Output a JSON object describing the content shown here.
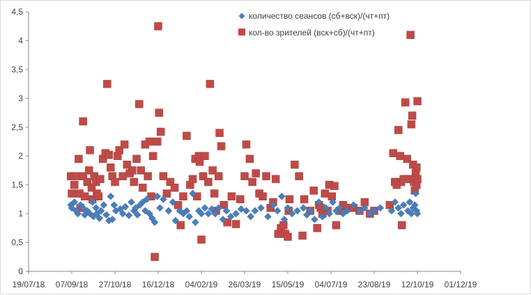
{
  "chart_data": {
    "type": "scatter",
    "title": "",
    "xlabel": "",
    "ylabel": "",
    "x_ticks": [
      "19/07/18",
      "07/09/18",
      "27/10/18",
      "16/12/18",
      "04/02/19",
      "26/03/19",
      "15/05/19",
      "04/07/19",
      "23/08/19",
      "12/10/19",
      "01/12/19"
    ],
    "y_ticks": [
      "0",
      "0,5",
      "1",
      "1,5",
      "2",
      "2,5",
      "3",
      "3,5",
      "4",
      "4,5"
    ],
    "xlim": [
      "2018-07-19",
      "2019-12-01"
    ],
    "ylim": [
      0,
      4.5
    ],
    "grid": "none",
    "legend_position": "top-right",
    "series": [
      {
        "name": "количество сеансов (сб+вск)/(чт+пт)",
        "color": "#4a7ebb",
        "marker": "diamond",
        "points": [
          [
            "2018-09-06",
            1.15
          ],
          [
            "2018-09-07",
            1.1
          ],
          [
            "2018-09-10",
            1.2
          ],
          [
            "2018-09-12",
            1.05
          ],
          [
            "2018-09-14",
            1.0
          ],
          [
            "2018-09-17",
            1.15
          ],
          [
            "2018-09-20",
            1.1
          ],
          [
            "2018-09-22",
            0.98
          ],
          [
            "2018-09-25",
            1.05
          ],
          [
            "2018-09-28",
            1.0
          ],
          [
            "2018-10-01",
            1.2
          ],
          [
            "2018-10-02",
            0.95
          ],
          [
            "2018-10-05",
            1.1
          ],
          [
            "2018-10-06",
            1.0
          ],
          [
            "2018-10-09",
            0.92
          ],
          [
            "2018-10-11",
            1.05
          ],
          [
            "2018-10-14",
            1.15
          ],
          [
            "2018-10-17",
            0.98
          ],
          [
            "2018-10-20",
            0.88
          ],
          [
            "2018-10-22",
            1.3
          ],
          [
            "2018-10-24",
            0.9
          ],
          [
            "2018-10-26",
            1.15
          ],
          [
            "2018-10-28",
            1.05
          ],
          [
            "2018-11-02",
            1.08
          ],
          [
            "2018-11-05",
            1.0
          ],
          [
            "2018-11-08",
            1.12
          ],
          [
            "2018-11-12",
            0.97
          ],
          [
            "2018-11-15",
            1.2
          ],
          [
            "2018-11-18",
            1.05
          ],
          [
            "2018-11-20",
            1.1
          ],
          [
            "2018-11-22",
            0.98
          ],
          [
            "2018-11-25",
            1.15
          ],
          [
            "2018-11-28",
            1.2
          ],
          [
            "2018-12-01",
            1.05
          ],
          [
            "2018-12-03",
            1.25
          ],
          [
            "2018-12-06",
            1.0
          ],
          [
            "2018-12-09",
            0.92
          ],
          [
            "2018-12-12",
            0.85
          ],
          [
            "2018-12-15",
            1.3
          ],
          [
            "2018-12-18",
            1.1
          ],
          [
            "2018-12-22",
            1.25
          ],
          [
            "2018-12-28",
            1.05
          ],
          [
            "2019-01-02",
            1.2
          ],
          [
            "2019-01-05",
            0.88
          ],
          [
            "2019-01-10",
            1.05
          ],
          [
            "2019-01-14",
            1.0
          ],
          [
            "2019-01-18",
            1.05
          ],
          [
            "2019-01-21",
            0.95
          ],
          [
            "2019-01-25",
            1.35
          ],
          [
            "2019-01-28",
            0.85
          ],
          [
            "2019-02-01",
            1.05
          ],
          [
            "2019-02-04",
            1.0
          ],
          [
            "2019-02-08",
            1.1
          ],
          [
            "2019-02-12",
            1.0
          ],
          [
            "2019-02-16",
            1.08
          ],
          [
            "2019-02-20",
            1.0
          ],
          [
            "2019-02-24",
            1.1
          ],
          [
            "2019-03-01",
            0.9
          ],
          [
            "2019-03-05",
            1.05
          ],
          [
            "2019-03-10",
            0.95
          ],
          [
            "2019-03-16",
            1.0
          ],
          [
            "2019-03-22",
            1.08
          ],
          [
            "2019-03-28",
            1.05
          ],
          [
            "2019-04-02",
            0.95
          ],
          [
            "2019-04-07",
            1.05
          ],
          [
            "2019-04-14",
            1.1
          ],
          [
            "2019-04-22",
            0.95
          ],
          [
            "2019-04-28",
            1.15
          ],
          [
            "2019-05-03",
            1.05
          ],
          [
            "2019-05-08",
            1.3
          ],
          [
            "2019-05-11",
            0.9
          ],
          [
            "2019-05-15",
            1.1
          ],
          [
            "2019-05-20",
            1.0
          ],
          [
            "2019-05-26",
            1.05
          ],
          [
            "2019-06-02",
            1.1
          ],
          [
            "2019-06-06",
            0.98
          ],
          [
            "2019-06-10",
            1.05
          ],
          [
            "2019-06-15",
            0.9
          ],
          [
            "2019-06-20",
            1.2
          ],
          [
            "2019-06-24",
            0.95
          ],
          [
            "2019-06-28",
            1.1
          ],
          [
            "2019-07-02",
            1.0
          ],
          [
            "2019-07-06",
            1.2
          ],
          [
            "2019-07-10",
            1.05
          ],
          [
            "2019-07-14",
            1.1
          ],
          [
            "2019-07-18",
            1.0
          ],
          [
            "2019-07-23",
            1.05
          ],
          [
            "2019-07-30",
            1.15
          ],
          [
            "2019-08-06",
            1.05
          ],
          [
            "2019-08-12",
            1.1
          ],
          [
            "2019-08-18",
            1.0
          ],
          [
            "2019-08-23",
            1.05
          ],
          [
            "2019-08-30",
            1.1
          ],
          [
            "2019-09-12",
            1.05
          ],
          [
            "2019-09-16",
            1.2
          ],
          [
            "2019-09-20",
            1.1
          ],
          [
            "2019-09-23",
            1.0
          ],
          [
            "2019-09-26",
            1.15
          ],
          [
            "2019-10-01",
            1.05
          ],
          [
            "2019-10-03",
            1.2
          ],
          [
            "2019-10-05",
            1.0
          ],
          [
            "2019-10-07",
            1.1
          ],
          [
            "2019-10-09",
            1.15
          ],
          [
            "2019-10-10",
            1.35
          ],
          [
            "2019-10-11",
            1.05
          ],
          [
            "2019-10-12",
            1.0
          ]
        ]
      },
      {
        "name": "кол-во зрителей (вск+сб)/(чт+пт)",
        "color": "#be4b48",
        "marker": "square",
        "points": [
          [
            "2018-09-06",
            1.65
          ],
          [
            "2018-09-07",
            1.35
          ],
          [
            "2018-09-10",
            1.5
          ],
          [
            "2018-09-12",
            1.65
          ],
          [
            "2018-09-15",
            1.95
          ],
          [
            "2018-09-16",
            1.35
          ],
          [
            "2018-09-17",
            1.1
          ],
          [
            "2018-09-20",
            2.6
          ],
          [
            "2018-09-20",
            1.65
          ],
          [
            "2018-09-22",
            1.3
          ],
          [
            "2018-09-25",
            1.55
          ],
          [
            "2018-09-27",
            1.75
          ],
          [
            "2018-09-28",
            2.1
          ],
          [
            "2018-09-30",
            1.45
          ],
          [
            "2018-10-01",
            1.25
          ],
          [
            "2018-10-03",
            1.65
          ],
          [
            "2018-10-05",
            1.55
          ],
          [
            "2018-10-06",
            1.35
          ],
          [
            "2018-10-08",
            1.3
          ],
          [
            "2018-10-10",
            1.6
          ],
          [
            "2018-10-13",
            1.95
          ],
          [
            "2018-10-16",
            2.05
          ],
          [
            "2018-10-18",
            3.25
          ],
          [
            "2018-10-20",
            2.02
          ],
          [
            "2018-10-22",
            1.8
          ],
          [
            "2018-10-24",
            1.65
          ],
          [
            "2018-10-27",
            1.55
          ],
          [
            "2018-10-30",
            2.0
          ],
          [
            "2018-11-01",
            2.1
          ],
          [
            "2018-11-05",
            1.65
          ],
          [
            "2018-11-07",
            2.2
          ],
          [
            "2018-11-10",
            1.85
          ],
          [
            "2018-11-13",
            1.7
          ],
          [
            "2018-11-16",
            1.75
          ],
          [
            "2018-11-18",
            1.55
          ],
          [
            "2018-11-21",
            1.95
          ],
          [
            "2018-11-24",
            2.9
          ],
          [
            "2018-11-26",
            1.75
          ],
          [
            "2018-11-28",
            1.45
          ],
          [
            "2018-12-01",
            2.2
          ],
          [
            "2018-12-04",
            1.65
          ],
          [
            "2018-12-06",
            2.25
          ],
          [
            "2018-12-08",
            1.3
          ],
          [
            "2018-12-10",
            2.0
          ],
          [
            "2018-12-12",
            0.25
          ],
          [
            "2018-12-15",
            2.25
          ],
          [
            "2018-12-16",
            4.25
          ],
          [
            "2018-12-17",
            2.75
          ],
          [
            "2018-12-19",
            2.42
          ],
          [
            "2018-12-22",
            1.65
          ],
          [
            "2018-12-26",
            1.35
          ],
          [
            "2018-12-30",
            1.55
          ],
          [
            "2019-01-04",
            1.45
          ],
          [
            "2019-01-08",
            1.15
          ],
          [
            "2019-01-11",
            0.8
          ],
          [
            "2019-01-14",
            1.3
          ],
          [
            "2019-01-18",
            2.35
          ],
          [
            "2019-01-22",
            1.5
          ],
          [
            "2019-01-25",
            1.6
          ],
          [
            "2019-01-28",
            1.95
          ],
          [
            "2019-01-30",
            1.3
          ],
          [
            "2019-02-01",
            2.0
          ],
          [
            "2019-02-02",
            1.9
          ],
          [
            "2019-02-04",
            0.55
          ],
          [
            "2019-02-06",
            1.65
          ],
          [
            "2019-02-08",
            2.0
          ],
          [
            "2019-02-12",
            1.55
          ],
          [
            "2019-02-14",
            3.25
          ],
          [
            "2019-02-17",
            1.75
          ],
          [
            "2019-02-19",
            1.35
          ],
          [
            "2019-02-21",
            1.05
          ],
          [
            "2019-02-24",
            1.65
          ],
          [
            "2019-02-25",
            2.4
          ],
          [
            "2019-02-27",
            2.17
          ],
          [
            "2019-03-02",
            1.15
          ],
          [
            "2019-03-06",
            0.85
          ],
          [
            "2019-03-11",
            1.3
          ],
          [
            "2019-03-16",
            0.82
          ],
          [
            "2019-03-21",
            1.25
          ],
          [
            "2019-03-26",
            1.65
          ],
          [
            "2019-03-28",
            2.2
          ],
          [
            "2019-04-01",
            1.95
          ],
          [
            "2019-04-04",
            1.55
          ],
          [
            "2019-04-08",
            1.7
          ],
          [
            "2019-04-12",
            1.35
          ],
          [
            "2019-04-16",
            1.3
          ],
          [
            "2019-04-20",
            1.65
          ],
          [
            "2019-04-25",
            1.1
          ],
          [
            "2019-04-28",
            1.2
          ],
          [
            "2019-05-01",
            1.6
          ],
          [
            "2019-05-04",
            0.65
          ],
          [
            "2019-05-07",
            0.75
          ],
          [
            "2019-05-10",
            0.8
          ],
          [
            "2019-05-12",
            0.65
          ],
          [
            "2019-05-15",
            0.6
          ],
          [
            "2019-05-16",
            1.05
          ],
          [
            "2019-05-17",
            1.25
          ],
          [
            "2019-05-23",
            1.85
          ],
          [
            "2019-05-28",
            1.65
          ],
          [
            "2019-06-01",
            0.62
          ],
          [
            "2019-06-03",
            1.25
          ],
          [
            "2019-06-10",
            1.05
          ],
          [
            "2019-06-14",
            1.4
          ],
          [
            "2019-06-18",
            0.75
          ],
          [
            "2019-06-20",
            1.15
          ],
          [
            "2019-06-22",
            1.1
          ],
          [
            "2019-06-24",
            1.0
          ],
          [
            "2019-06-27",
            1.35
          ],
          [
            "2019-06-30",
            1.05
          ],
          [
            "2019-07-02",
            1.5
          ],
          [
            "2019-07-05",
            1.3
          ],
          [
            "2019-07-08",
            1.48
          ],
          [
            "2019-07-10",
            0.8
          ],
          [
            "2019-07-14",
            1.05
          ],
          [
            "2019-07-18",
            1.15
          ],
          [
            "2019-07-23",
            1.1
          ],
          [
            "2019-07-30",
            1.1
          ],
          [
            "2019-08-06",
            1.05
          ],
          [
            "2019-08-12",
            1.2
          ],
          [
            "2019-08-18",
            1.0
          ],
          [
            "2019-08-23",
            1.05
          ],
          [
            "2019-09-10",
            1.15
          ],
          [
            "2019-09-14",
            2.05
          ],
          [
            "2019-09-16",
            1.55
          ],
          [
            "2019-09-18",
            1.5
          ],
          [
            "2019-09-20",
            2.45
          ],
          [
            "2019-09-22",
            2.0
          ],
          [
            "2019-09-23",
            1.55
          ],
          [
            "2019-09-24",
            0.8
          ],
          [
            "2019-09-26",
            1.6
          ],
          [
            "2019-09-28",
            2.93
          ],
          [
            "2019-09-30",
            1.95
          ],
          [
            "2019-10-02",
            1.6
          ],
          [
            "2019-10-04",
            4.1
          ],
          [
            "2019-10-05",
            2.55
          ],
          [
            "2019-10-06",
            2.7
          ],
          [
            "2019-10-07",
            1.85
          ],
          [
            "2019-10-08",
            1.55
          ],
          [
            "2019-10-09",
            1.4
          ],
          [
            "2019-10-10",
            1.7
          ],
          [
            "2019-10-11",
            1.5
          ],
          [
            "2019-10-11",
            1.8
          ],
          [
            "2019-10-12",
            2.95
          ],
          [
            "2019-10-12",
            1.6
          ]
        ]
      }
    ]
  }
}
